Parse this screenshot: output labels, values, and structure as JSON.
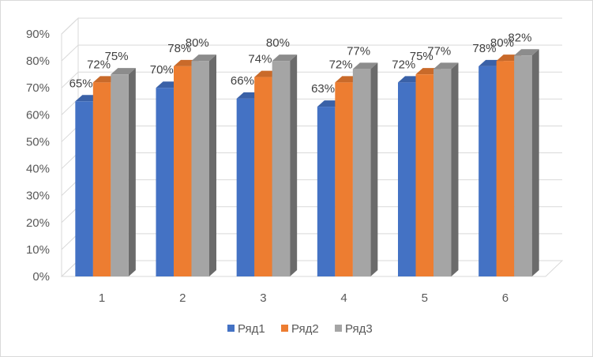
{
  "chart_data": {
    "type": "bar",
    "style": "3d-clustered-column",
    "categories": [
      "1",
      "2",
      "3",
      "4",
      "5",
      "6"
    ],
    "series": [
      {
        "name": "Ряд1",
        "color": "#4472C4",
        "values": [
          65,
          70,
          66,
          63,
          72,
          78
        ]
      },
      {
        "name": "Ряд2",
        "color": "#ED7D31",
        "values": [
          72,
          78,
          74,
          72,
          75,
          80
        ]
      },
      {
        "name": "Ряд3",
        "color": "#A5A5A5",
        "values": [
          75,
          80,
          80,
          77,
          77,
          82
        ]
      }
    ],
    "ylim": [
      0,
      90
    ],
    "y_ticks": [
      "0%",
      "10%",
      "20%",
      "30%",
      "40%",
      "50%",
      "60%",
      "70%",
      "80%",
      "90%"
    ],
    "y_unit": "%",
    "data_labels": true,
    "grid": true,
    "legend_position": "bottom",
    "title": "",
    "xlabel": "",
    "ylabel": ""
  }
}
